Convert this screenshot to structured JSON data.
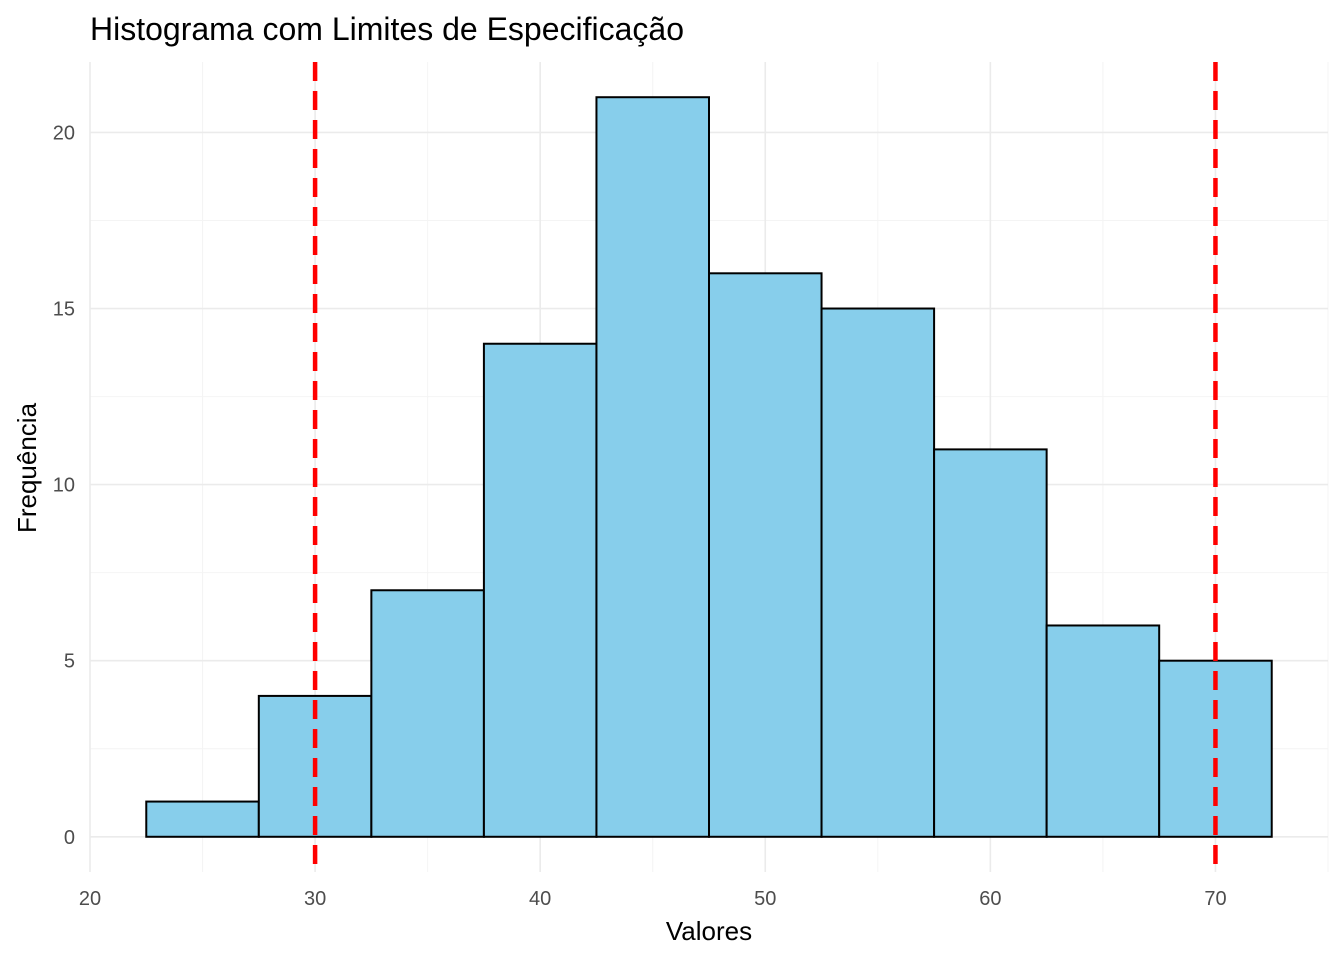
{
  "chart_data": {
    "type": "bar",
    "subtype": "histogram",
    "title": "Histograma com Limites de Especificação",
    "xlabel": "Valores",
    "ylabel": "Frequência",
    "xlim": [
      20,
      75
    ],
    "ylim": [
      -1,
      22
    ],
    "x_ticks": [
      20,
      30,
      40,
      50,
      60,
      70
    ],
    "y_ticks": [
      0,
      5,
      10,
      15,
      20
    ],
    "grid": true,
    "bin_width": 5,
    "bins": [
      {
        "start": 22.5,
        "end": 27.5,
        "count": 1
      },
      {
        "start": 27.5,
        "end": 32.5,
        "count": 4
      },
      {
        "start": 32.5,
        "end": 37.5,
        "count": 7
      },
      {
        "start": 37.5,
        "end": 42.5,
        "count": 14
      },
      {
        "start": 42.5,
        "end": 47.5,
        "count": 21
      },
      {
        "start": 47.5,
        "end": 52.5,
        "count": 16
      },
      {
        "start": 52.5,
        "end": 57.5,
        "count": 15
      },
      {
        "start": 57.5,
        "end": 62.5,
        "count": 11
      },
      {
        "start": 62.5,
        "end": 67.5,
        "count": 6
      },
      {
        "start": 67.5,
        "end": 72.5,
        "count": 5
      }
    ],
    "reference_lines": [
      {
        "name": "lower-spec-limit",
        "x": 30,
        "style": "dashed"
      },
      {
        "name": "upper-spec-limit",
        "x": 70,
        "style": "dashed"
      }
    ]
  },
  "colors": {
    "bar_fill": "#87CEEB",
    "bar_outline": "#000000",
    "spec_line": "#FF0000"
  }
}
